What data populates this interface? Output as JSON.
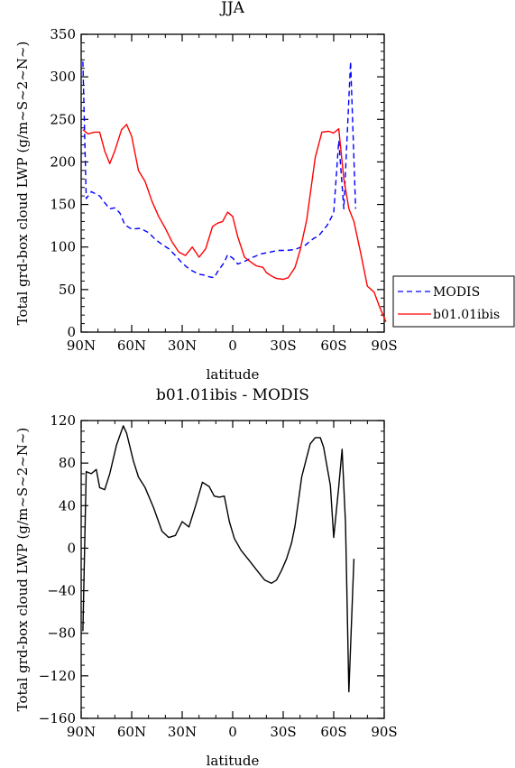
{
  "chart_data": [
    {
      "type": "line",
      "title": "JJA",
      "xlabel": "latitude",
      "ylabel": "Total grd-box cloud LWP (g/m~S~2~N~)",
      "xlim": [
        -90,
        90
      ],
      "ylim": [
        0,
        350
      ],
      "x_ticks": [
        {
          "v": -90,
          "label": "90N"
        },
        {
          "v": -60,
          "label": "60N"
        },
        {
          "v": -30,
          "label": "30N"
        },
        {
          "v": 0,
          "label": "0"
        },
        {
          "v": 30,
          "label": "30S"
        },
        {
          "v": 60,
          "label": "60S"
        },
        {
          "v": 90,
          "label": "90S"
        }
      ],
      "y_ticks": [
        0,
        50,
        100,
        150,
        200,
        250,
        300,
        350
      ],
      "legend": {
        "placement": "right"
      },
      "series": [
        {
          "name": "MODIS",
          "color": "#0000ff",
          "dash": "dashed",
          "x": [
            -89,
            -87,
            -84,
            -79,
            -76,
            -73,
            -70,
            -67,
            -64,
            -60,
            -55,
            -50,
            -46,
            -42,
            -38,
            -34,
            -30,
            -27,
            -24,
            -20,
            -17,
            -14,
            -11,
            -9,
            -5,
            -3,
            0,
            3,
            8,
            12,
            17,
            22,
            27,
            32,
            37,
            43,
            48,
            51,
            56,
            60,
            63,
            66,
            70,
            73
          ],
          "y": [
            318,
            157,
            165,
            160,
            152,
            145,
            146,
            140,
            126,
            121,
            122,
            117,
            109,
            103,
            98,
            90,
            81,
            76,
            72,
            68,
            67,
            65,
            64,
            71,
            82,
            91,
            87,
            80,
            84,
            88,
            92,
            94,
            96,
            96,
            97,
            102,
            110,
            113,
            125,
            140,
            225,
            145,
            318,
            145
          ]
        },
        {
          "name": "b01.01ibis",
          "color": "#ff0000",
          "dash": "solid",
          "x": [
            -89,
            -86,
            -82,
            -79,
            -76,
            -73,
            -70,
            -66,
            -63,
            -60,
            -56,
            -52,
            -48,
            -44,
            -40,
            -36,
            -32,
            -28,
            -24,
            -20,
            -16,
            -12,
            -9,
            -6,
            -3,
            0,
            3,
            7,
            11,
            14,
            18,
            20,
            23,
            26,
            30,
            33,
            37,
            40,
            44,
            49,
            53,
            57,
            60,
            63,
            66,
            69,
            72,
            76,
            80,
            84,
            87,
            91
          ],
          "y": [
            238,
            233,
            235,
            235,
            213,
            198,
            213,
            238,
            244,
            230,
            190,
            177,
            154,
            136,
            122,
            106,
            94,
            90,
            100,
            88,
            98,
            124,
            128,
            130,
            141,
            136,
            112,
            88,
            82,
            78,
            76,
            70,
            66,
            63,
            62,
            64,
            76,
            96,
            132,
            205,
            235,
            236,
            234,
            239,
            180,
            145,
            130,
            93,
            54,
            47,
            31,
            12
          ]
        }
      ]
    },
    {
      "type": "line",
      "title": "b01.01ibis - MODIS",
      "xlabel": "latitude",
      "ylabel": "Total grd-box cloud LWP (g/m~S~2~N~)",
      "xlim": [
        -90,
        90
      ],
      "ylim": [
        -160,
        120
      ],
      "x_ticks": [
        {
          "v": -90,
          "label": "90N"
        },
        {
          "v": -60,
          "label": "60N"
        },
        {
          "v": -30,
          "label": "30N"
        },
        {
          "v": 0,
          "label": "0"
        },
        {
          "v": 30,
          "label": "30S"
        },
        {
          "v": 60,
          "label": "60S"
        },
        {
          "v": 90,
          "label": "90S"
        }
      ],
      "y_ticks": [
        -160,
        -120,
        -80,
        -40,
        0,
        40,
        80,
        120
      ],
      "series": [
        {
          "color": "#000000",
          "dash": "solid",
          "x": [
            -89,
            -87,
            -84,
            -81,
            -79,
            -76,
            -73,
            -69,
            -65,
            -63,
            -59,
            -56,
            -52,
            -47,
            -42,
            -38,
            -34,
            -30,
            -26,
            -22,
            -18,
            -14,
            -11,
            -8,
            -5,
            -2,
            1,
            5,
            10,
            15,
            19,
            23,
            26,
            29,
            32,
            35,
            37,
            41,
            46,
            49,
            52,
            54,
            58,
            60,
            63,
            65,
            67,
            69,
            72
          ],
          "y": [
            -78,
            72,
            70,
            74,
            57,
            55,
            70,
            97,
            115,
            108,
            82,
            67,
            57,
            38,
            16,
            10,
            12,
            25,
            20,
            40,
            62,
            58,
            49,
            48,
            49,
            25,
            9,
            -2,
            -12,
            -22,
            -30,
            -33,
            -30,
            -21,
            -10,
            5,
            21,
            67,
            98,
            104,
            104,
            95,
            59,
            10,
            58,
            93,
            23,
            -135,
            -10
          ]
        }
      ]
    }
  ]
}
